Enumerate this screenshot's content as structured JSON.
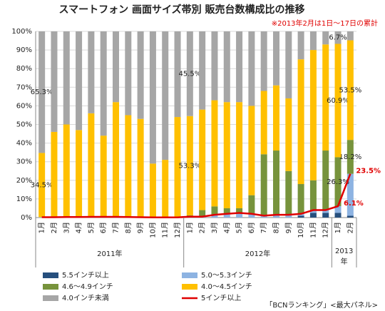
{
  "chart_data": {
    "type": "stacked_bar",
    "title": "スマートフォン 画面サイズ帯別 販売台数構成比の推移",
    "subtitle": "※2013年2月は1日～17日の累計",
    "footnote": "「BCNランキング」<最大パネル>",
    "categories": [
      "1月",
      "2月",
      "3月",
      "4月",
      "5月",
      "6月",
      "7月",
      "8月",
      "9月",
      "10月",
      "11月",
      "12月",
      "1月",
      "2月",
      "3月",
      "4月",
      "5月",
      "6月",
      "7月",
      "8月",
      "9月",
      "10月",
      "11月",
      "12月",
      "1月",
      "2月"
    ],
    "year_groups": [
      "2011年",
      "2012年",
      "2013年"
    ],
    "ylim": [
      0,
      100
    ],
    "yticks": [
      {
        "value": 0,
        "label": "0%"
      },
      {
        "value": 10,
        "label": "10%"
      },
      {
        "value": 20,
        "label": "20%"
      },
      {
        "value": 30,
        "label": "30%"
      },
      {
        "value": 40,
        "label": "40%"
      },
      {
        "value": 50,
        "label": "50%"
      },
      {
        "value": 60,
        "label": "60%"
      },
      {
        "value": 70,
        "label": "70%"
      },
      {
        "value": 80,
        "label": "80%"
      },
      {
        "value": 90,
        "label": "90%"
      },
      {
        "value": 100,
        "label": "100%"
      }
    ],
    "grid": true,
    "series": [
      {
        "name": "5.5インチ以上",
        "color": "#264f7d",
        "values": [
          0,
          0,
          0,
          0,
          0,
          0,
          0,
          0,
          0,
          0,
          0,
          0,
          0,
          0,
          0,
          0,
          0,
          0,
          0,
          0,
          0,
          1,
          2.5,
          2.5,
          2.5,
          1
        ]
      },
      {
        "name": "5.0〜5.3インチ",
        "color": "#8db3e2",
        "values": [
          0.2,
          0.2,
          0.3,
          0.3,
          0.4,
          0.4,
          0.4,
          0.3,
          0.2,
          0.1,
          0.1,
          0.1,
          0.5,
          0.5,
          1.5,
          2,
          2.5,
          2,
          1,
          1.5,
          1.5,
          1,
          1.5,
          1.5,
          3.6,
          22.5
        ]
      },
      {
        "name": "4.6〜4.9インチ",
        "color": "#77933c",
        "values": [
          0,
          0,
          0,
          0,
          0,
          0,
          0,
          0,
          0,
          0,
          0,
          0,
          0.7,
          3.5,
          4.5,
          3,
          2.5,
          10,
          33,
          34.5,
          23.5,
          16,
          16,
          32,
          26.3,
          18.2
        ],
        "value_labels": [
          null,
          null,
          null,
          null,
          null,
          null,
          null,
          null,
          null,
          null,
          null,
          null,
          null,
          null,
          null,
          null,
          null,
          null,
          null,
          null,
          null,
          null,
          null,
          null,
          "26.3%",
          "18.2%"
        ]
      },
      {
        "name": "4.0〜4.5インチ",
        "color": "#ffc000",
        "values": [
          34.5,
          45.8,
          49.7,
          46.7,
          55.6,
          43.6,
          61.6,
          54.7,
          52.8,
          28.9,
          30.9,
          53.9,
          53.3,
          54,
          57,
          57,
          57,
          48,
          34,
          35,
          39,
          67,
          70,
          57,
          60.9,
          53.5
        ],
        "value_labels": [
          "34.5%",
          null,
          null,
          null,
          null,
          null,
          null,
          null,
          null,
          null,
          null,
          null,
          "53.3%",
          null,
          null,
          null,
          null,
          null,
          null,
          null,
          null,
          null,
          null,
          null,
          "60.9%",
          "53.5%"
        ]
      },
      {
        "name": "4.0インチ未満",
        "color": "#a6a6a6",
        "values": [
          65.3,
          54,
          50,
          53,
          44,
          56,
          38,
          45,
          47,
          71,
          69,
          46,
          45.5,
          42,
          37,
          38,
          38,
          40,
          32,
          29,
          36,
          15,
          10,
          7,
          6.7,
          4.8
        ],
        "value_labels": [
          "65.3%",
          null,
          null,
          null,
          null,
          null,
          null,
          null,
          null,
          null,
          null,
          null,
          "45.5%",
          null,
          null,
          null,
          null,
          null,
          null,
          null,
          null,
          null,
          null,
          null,
          "6.7%",
          null
        ]
      }
    ],
    "line_series": {
      "name": "5インチ以上",
      "color": "#e00000",
      "values": [
        0.2,
        0.2,
        0.3,
        0.3,
        0.4,
        0.4,
        0.4,
        0.3,
        0.2,
        0.1,
        0.1,
        0.1,
        0.5,
        0.5,
        1.5,
        2,
        2.5,
        2,
        1,
        1.5,
        1.5,
        2,
        4,
        4,
        6.1,
        23.5
      ],
      "value_labels": [
        null,
        null,
        null,
        null,
        null,
        null,
        null,
        null,
        null,
        null,
        null,
        null,
        null,
        null,
        null,
        null,
        null,
        null,
        null,
        null,
        null,
        null,
        null,
        null,
        "6.1%",
        "23.5%"
      ]
    },
    "legend_order": [
      0,
      1,
      2,
      3,
      4
    ]
  }
}
